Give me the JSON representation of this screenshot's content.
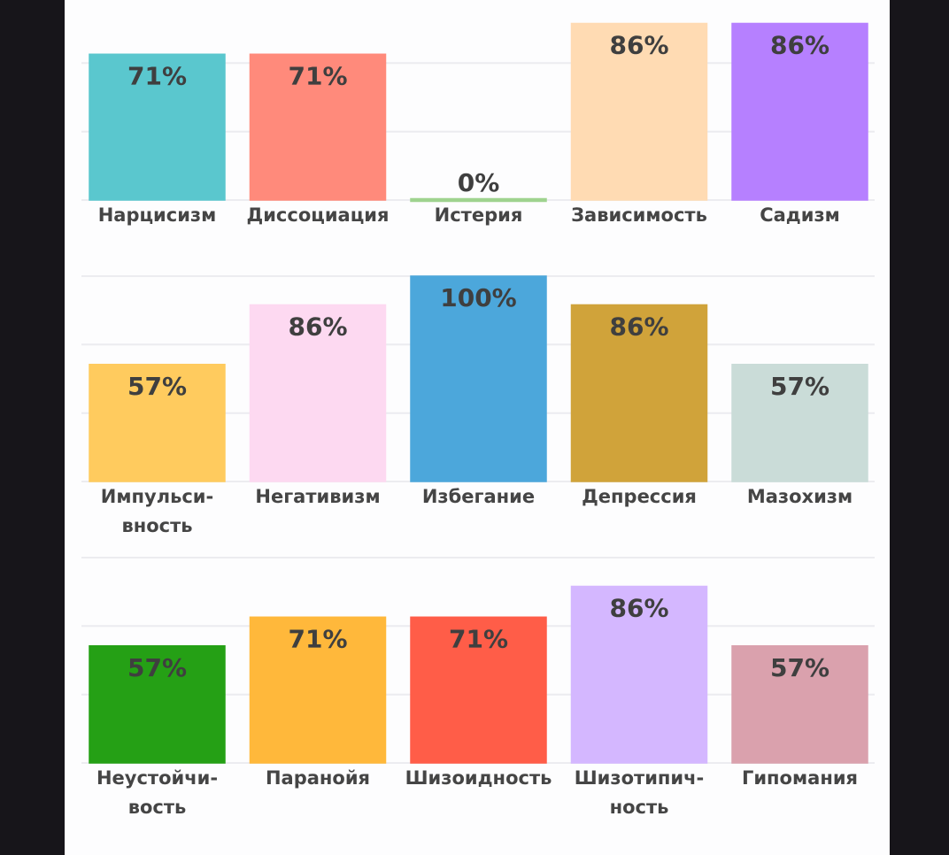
{
  "chart_data": [
    {
      "type": "bar",
      "categories": [
        "Нарцисизм",
        "Диссоциация",
        "Истерия",
        "Зависимость",
        "Садизм"
      ],
      "values": [
        71,
        71,
        0,
        86,
        86
      ],
      "value_labels": [
        "71%",
        "71%",
        "0%",
        "86%",
        "86%"
      ],
      "colors": [
        "#5ac7ce",
        "#ff8a7b",
        "#9fd38f",
        "#ffdbb3",
        "#b680ff"
      ],
      "ylim": [
        0,
        100
      ],
      "yticks": [
        0,
        33.3,
        66.7,
        100
      ],
      "grid": true
    },
    {
      "type": "bar",
      "categories": [
        "Импульси-\nвность",
        "Негативизм",
        "Избегание",
        "Депрессия",
        "Мазохизм"
      ],
      "values": [
        57,
        86,
        100,
        86,
        57
      ],
      "value_labels": [
        "57%",
        "86%",
        "100%",
        "86%",
        "57%"
      ],
      "colors": [
        "#ffcb5e",
        "#fdd9f1",
        "#4ca7db",
        "#d0a33a",
        "#cadcd8"
      ],
      "ylim": [
        0,
        100
      ],
      "yticks": [
        0,
        33.3,
        66.7,
        100
      ],
      "grid": true
    },
    {
      "type": "bar",
      "categories": [
        "Неустойчи-\nвость",
        "Паранойя",
        "Шизоидность",
        "Шизотипич-\nность",
        "Гипомания"
      ],
      "values": [
        57,
        71,
        71,
        86,
        57
      ],
      "value_labels": [
        "57%",
        "71%",
        "71%",
        "86%",
        "57%"
      ],
      "colors": [
        "#25a015",
        "#ffb83b",
        "#ff5d48",
        "#d4b7ff",
        "#daa1ad"
      ],
      "ylim": [
        0,
        100
      ],
      "yticks": [
        0,
        33.3,
        66.7,
        100
      ],
      "grid": true
    }
  ]
}
